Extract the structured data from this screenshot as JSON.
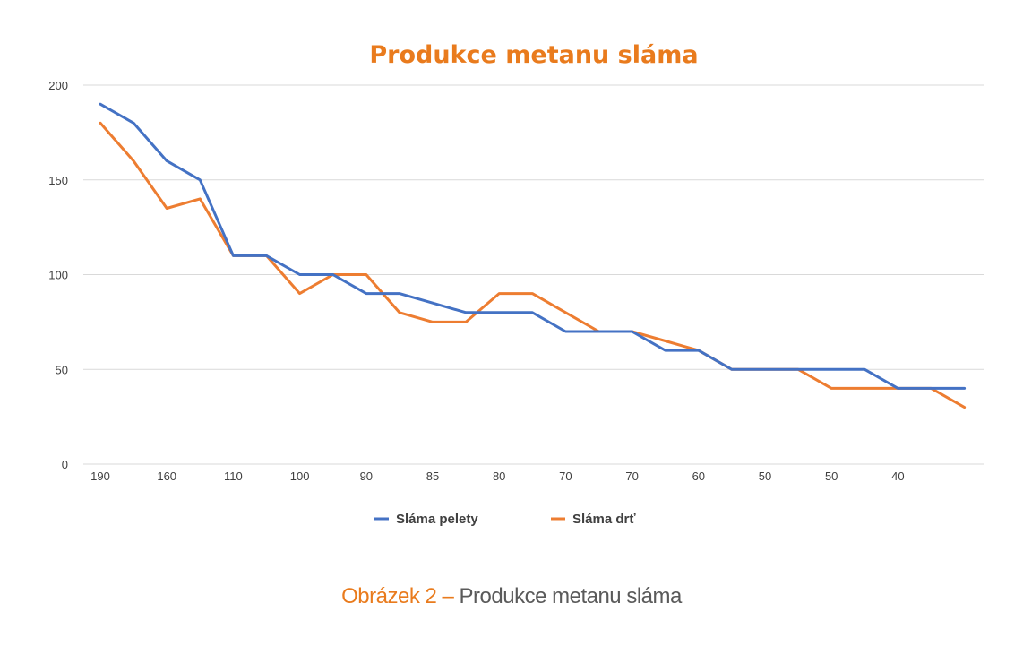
{
  "chart_data": {
    "type": "line",
    "title": "Produkce metanu sláma",
    "ylim": [
      0,
      200
    ],
    "y_ticks": [
      "0",
      "50",
      "100",
      "150",
      "200"
    ],
    "x_tick_labels": [
      "190",
      "",
      "160",
      "",
      "110",
      "",
      "100",
      "",
      "90",
      "",
      "85",
      "",
      "80",
      "",
      "70",
      "",
      "70",
      "",
      "60",
      "",
      "50",
      "",
      "50",
      "",
      "40",
      "",
      ""
    ],
    "grid": true,
    "legend_position": "bottom",
    "series": [
      {
        "name": "Sláma pelety",
        "color": "#4472c4",
        "values": [
          190,
          180,
          160,
          150,
          110,
          110,
          100,
          100,
          90,
          90,
          85,
          80,
          80,
          80,
          70,
          70,
          70,
          60,
          60,
          50,
          50,
          50,
          50,
          50,
          40,
          40,
          40
        ]
      },
      {
        "name": "Sláma drť",
        "color": "#ed7d31",
        "values": [
          180,
          160,
          135,
          140,
          110,
          110,
          90,
          100,
          100,
          80,
          75,
          75,
          90,
          90,
          80,
          70,
          70,
          65,
          60,
          50,
          50,
          50,
          40,
          40,
          40,
          40,
          30
        ]
      }
    ]
  },
  "colors": {
    "title": "#e97b1d",
    "grid": "#d9d9d9",
    "axis_text": "#404040"
  },
  "caption": {
    "prefix": "Obrázek 2 –",
    "text": " Produkce metanu sláma"
  }
}
